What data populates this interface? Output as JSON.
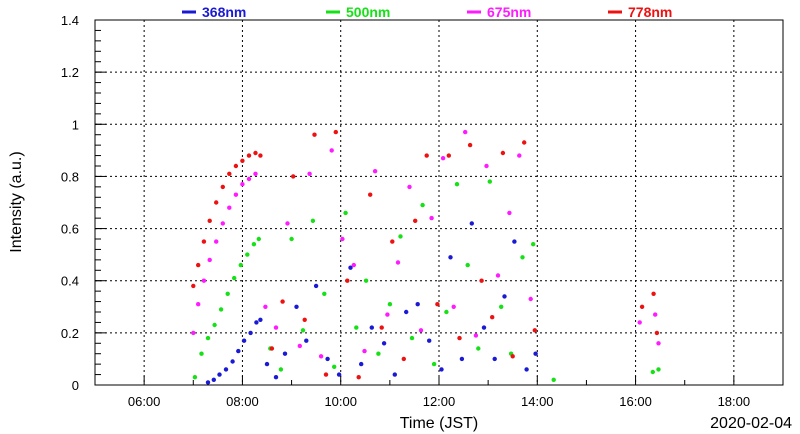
{
  "chart_data": {
    "type": "scatter",
    "title": "",
    "xlabel": "Time (JST)",
    "ylabel": "Intensity (a.u.)",
    "date_label": "2020-02-04",
    "xlim": [
      "05:00",
      "19:00"
    ],
    "ylim": [
      0,
      1.4
    ],
    "x_ticks": [
      "06:00",
      "08:00",
      "10:00",
      "12:00",
      "14:00",
      "16:00",
      "18:00"
    ],
    "y_ticks": [
      "0",
      "0.2",
      "0.4",
      "0.6",
      "0.8",
      "1",
      "1.2",
      "1.4"
    ],
    "grid": true,
    "legend_position": "top",
    "series": [
      {
        "name": "368nm",
        "color": "#1a1ad4",
        "peak": 0.25,
        "points": [
          [
            "07:18",
            0.01
          ],
          [
            "07:25",
            0.02
          ],
          [
            "07:32",
            0.04
          ],
          [
            "07:40",
            0.06
          ],
          [
            "07:48",
            0.09
          ],
          [
            "07:55",
            0.13
          ],
          [
            "08:02",
            0.17
          ],
          [
            "08:10",
            0.2
          ],
          [
            "08:17",
            0.24
          ],
          [
            "08:22",
            0.25
          ],
          [
            "08:30",
            0.08
          ],
          [
            "08:41",
            0.03
          ],
          [
            "08:52",
            0.12
          ],
          [
            "09:06",
            0.3
          ],
          [
            "09:18",
            0.17
          ],
          [
            "09:30",
            0.38
          ],
          [
            "09:44",
            0.1
          ],
          [
            "09:58",
            0.04
          ],
          [
            "10:12",
            0.45
          ],
          [
            "10:25",
            0.08
          ],
          [
            "10:38",
            0.22
          ],
          [
            "10:53",
            0.16
          ],
          [
            "11:06",
            0.04
          ],
          [
            "11:20",
            0.28
          ],
          [
            "11:34",
            0.31
          ],
          [
            "11:48",
            0.17
          ],
          [
            "12:03",
            0.06
          ],
          [
            "12:14",
            0.49
          ],
          [
            "12:28",
            0.1
          ],
          [
            "12:40",
            0.62
          ],
          [
            "12:55",
            0.22
          ],
          [
            "13:08",
            0.1
          ],
          [
            "13:20",
            0.34
          ],
          [
            "13:32",
            0.55
          ],
          [
            "13:47",
            0.06
          ],
          [
            "13:58",
            0.12
          ]
        ]
      },
      {
        "name": "500nm",
        "color": "#16e016",
        "peak": 0.56,
        "points": [
          [
            "07:02",
            0.03
          ],
          [
            "07:10",
            0.12
          ],
          [
            "07:18",
            0.18
          ],
          [
            "07:26",
            0.23
          ],
          [
            "07:34",
            0.29
          ],
          [
            "07:42",
            0.35
          ],
          [
            "07:50",
            0.41
          ],
          [
            "07:58",
            0.46
          ],
          [
            "08:06",
            0.5
          ],
          [
            "08:14",
            0.54
          ],
          [
            "08:20",
            0.56
          ],
          [
            "08:34",
            0.14
          ],
          [
            "08:47",
            0.06
          ],
          [
            "09:00",
            0.56
          ],
          [
            "09:14",
            0.21
          ],
          [
            "09:26",
            0.63
          ],
          [
            "09:40",
            0.35
          ],
          [
            "09:52",
            0.07
          ],
          [
            "10:06",
            0.66
          ],
          [
            "10:19",
            0.22
          ],
          [
            "10:31",
            0.4
          ],
          [
            "10:46",
            0.12
          ],
          [
            "11:00",
            0.31
          ],
          [
            "11:13",
            0.57
          ],
          [
            "11:27",
            0.18
          ],
          [
            "11:40",
            0.69
          ],
          [
            "11:54",
            0.08
          ],
          [
            "12:09",
            0.28
          ],
          [
            "12:22",
            0.77
          ],
          [
            "12:35",
            0.46
          ],
          [
            "12:48",
            0.14
          ],
          [
            "13:02",
            0.78
          ],
          [
            "13:16",
            0.3
          ],
          [
            "13:28",
            0.12
          ],
          [
            "13:42",
            0.49
          ],
          [
            "13:55",
            0.54
          ],
          [
            "14:20",
            0.02
          ],
          [
            "16:21",
            0.05
          ],
          [
            "16:28",
            0.06
          ]
        ]
      },
      {
        "name": "675nm",
        "color": "#ff1aff",
        "peak": 0.81,
        "points": [
          [
            "07:00",
            0.2
          ],
          [
            "07:06",
            0.31
          ],
          [
            "07:13",
            0.4
          ],
          [
            "07:20",
            0.48
          ],
          [
            "07:28",
            0.55
          ],
          [
            "07:36",
            0.62
          ],
          [
            "07:44",
            0.68
          ],
          [
            "07:52",
            0.73
          ],
          [
            "08:00",
            0.77
          ],
          [
            "08:08",
            0.79
          ],
          [
            "08:16",
            0.81
          ],
          [
            "08:28",
            0.3
          ],
          [
            "08:41",
            0.22
          ],
          [
            "08:55",
            0.62
          ],
          [
            "09:10",
            0.15
          ],
          [
            "09:22",
            0.81
          ],
          [
            "09:36",
            0.11
          ],
          [
            "09:49",
            0.9
          ],
          [
            "10:02",
            0.56
          ],
          [
            "10:16",
            0.46
          ],
          [
            "10:29",
            0.13
          ],
          [
            "10:42",
            0.82
          ],
          [
            "10:57",
            0.27
          ],
          [
            "11:10",
            0.47
          ],
          [
            "11:24",
            0.76
          ],
          [
            "11:38",
            0.21
          ],
          [
            "11:51",
            0.64
          ],
          [
            "12:05",
            0.87
          ],
          [
            "12:18",
            0.3
          ],
          [
            "12:32",
            0.97
          ],
          [
            "12:45",
            0.19
          ],
          [
            "12:58",
            0.84
          ],
          [
            "13:12",
            0.42
          ],
          [
            "13:26",
            0.66
          ],
          [
            "13:38",
            0.88
          ],
          [
            "13:52",
            0.33
          ],
          [
            "16:05",
            0.24
          ],
          [
            "16:24",
            0.27
          ],
          [
            "16:28",
            0.16
          ]
        ]
      },
      {
        "name": "778nm",
        "color": "#ee1111",
        "peak": 0.89,
        "points": [
          [
            "07:00",
            0.38
          ],
          [
            "07:06",
            0.46
          ],
          [
            "07:13",
            0.55
          ],
          [
            "07:20",
            0.63
          ],
          [
            "07:28",
            0.7
          ],
          [
            "07:36",
            0.76
          ],
          [
            "07:44",
            0.81
          ],
          [
            "07:52",
            0.84
          ],
          [
            "08:00",
            0.86
          ],
          [
            "08:08",
            0.88
          ],
          [
            "08:16",
            0.89
          ],
          [
            "08:22",
            0.88
          ],
          [
            "08:36",
            0.14
          ],
          [
            "08:49",
            0.32
          ],
          [
            "09:02",
            0.8
          ],
          [
            "09:16",
            0.25
          ],
          [
            "09:28",
            0.96
          ],
          [
            "09:42",
            0.04
          ],
          [
            "09:54",
            0.97
          ],
          [
            "10:08",
            0.4
          ],
          [
            "10:22",
            0.03
          ],
          [
            "10:36",
            0.73
          ],
          [
            "10:50",
            0.22
          ],
          [
            "11:03",
            0.55
          ],
          [
            "11:17",
            0.1
          ],
          [
            "11:31",
            0.63
          ],
          [
            "11:45",
            0.88
          ],
          [
            "11:58",
            0.31
          ],
          [
            "12:12",
            0.88
          ],
          [
            "12:25",
            0.18
          ],
          [
            "12:38",
            0.92
          ],
          [
            "12:52",
            0.4
          ],
          [
            "13:05",
            0.26
          ],
          [
            "13:18",
            0.89
          ],
          [
            "13:30",
            0.11
          ],
          [
            "13:44",
            0.93
          ],
          [
            "13:57",
            0.21
          ],
          [
            "16:08",
            0.3
          ],
          [
            "16:22",
            0.35
          ],
          [
            "16:26",
            0.2
          ]
        ]
      }
    ]
  }
}
